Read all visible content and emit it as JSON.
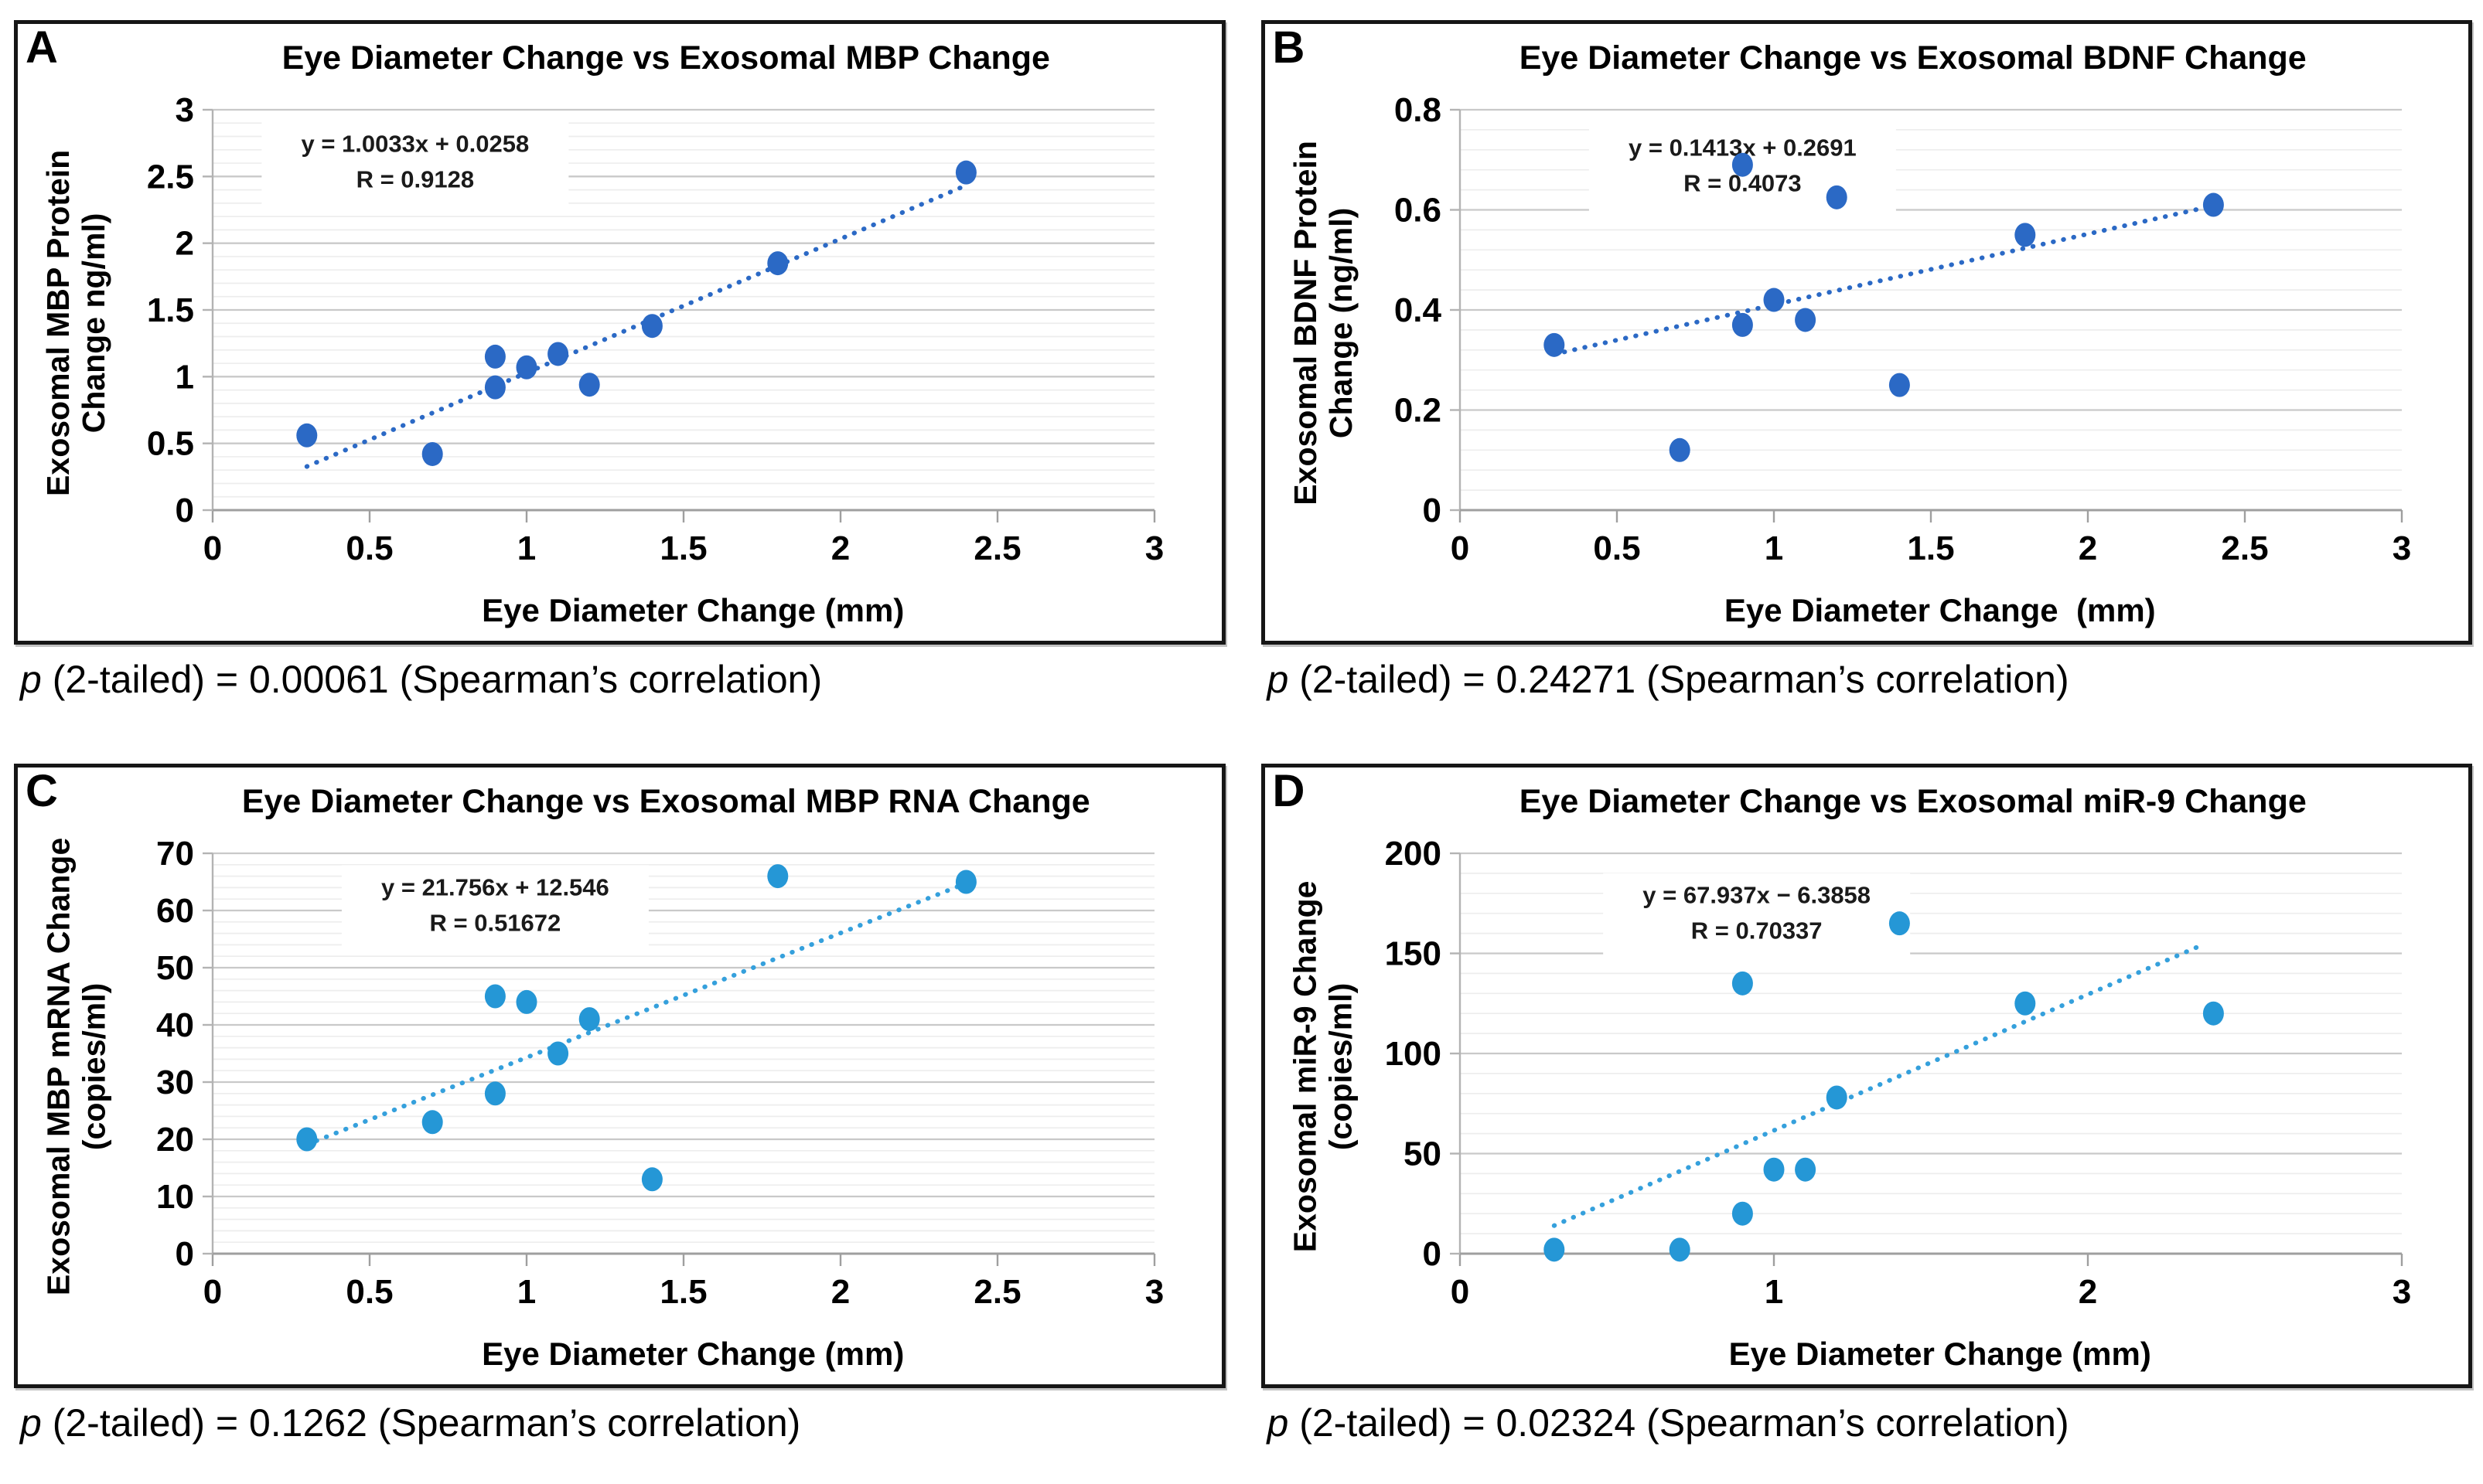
{
  "figure_caption_style": "four-panel scatter figure",
  "chart_data": [
    {
      "type": "scatter",
      "panel": "A",
      "title": "Eye Diameter Change vs Exosomal MBP Change",
      "xlabel": "Eye Diameter Change (mm)",
      "ylabel_line1": "Exosomal MBP Protein",
      "ylabel_line2": "Change ng/ml)",
      "x": [
        0.3,
        0.7,
        0.9,
        0.9,
        1.0,
        1.1,
        1.2,
        1.4,
        1.8,
        2.4
      ],
      "y": [
        0.56,
        0.42,
        1.15,
        0.92,
        1.07,
        1.17,
        0.94,
        1.38,
        1.85,
        2.53
      ],
      "xlim": [
        0,
        3
      ],
      "ylim": [
        0,
        3
      ],
      "xticks": [
        "0",
        "0.5",
        "1",
        "1.5",
        "2",
        "2.5",
        "3"
      ],
      "yticks": [
        "3",
        "2.5",
        "2",
        "1.5",
        "1",
        "0.5",
        "0"
      ],
      "y_minor_step": 0.1,
      "grid": "horizontal only",
      "legend": "none",
      "trendline": {
        "style": "dotted",
        "slope": 1.0033,
        "intercept": 0.0258,
        "x_range": [
          0.3,
          2.4
        ]
      },
      "annot": {
        "lines": [
          "y = 1.0033x + 0.0258",
          "R = 0.9128"
        ],
        "x_frac": 0.215,
        "y_frac": 0.045
      },
      "marker_color": "#2b69c5",
      "line_color": "#2b69c5",
      "p_italic": "p",
      "p_rest": " (2-tailed) = 0.00061 (Spearman’s correlation)"
    },
    {
      "type": "scatter",
      "panel": "B",
      "title": "Eye Diameter Change vs Exosomal BDNF Change",
      "xlabel": "Eye Diameter Change  (mm)",
      "ylabel_line1": "Exosomal BDNF Protein",
      "ylabel_line2": "Change (ng/ml)",
      "x": [
        0.3,
        0.7,
        0.9,
        0.9,
        1.0,
        1.1,
        1.2,
        1.4,
        1.8,
        2.4
      ],
      "y": [
        0.33,
        0.12,
        0.69,
        0.37,
        0.42,
        0.38,
        0.625,
        0.25,
        0.55,
        0.61
      ],
      "xlim": [
        0,
        3
      ],
      "ylim": [
        0,
        0.8
      ],
      "xticks": [
        "0",
        "0.5",
        "1",
        "1.5",
        "2",
        "2.5",
        "3"
      ],
      "yticks": [
        "0.8",
        "0.6",
        "0.4",
        "0.2",
        "0"
      ],
      "y_minor_step": 0.04,
      "grid": "horizontal only",
      "legend": "none",
      "trendline": {
        "style": "dotted",
        "slope": 0.1413,
        "intercept": 0.2691,
        "x_range": [
          0.3,
          2.4
        ]
      },
      "annot": {
        "lines": [
          "y = 0.1413x + 0.2691",
          "R = 0.4073"
        ],
        "x_frac": 0.3,
        "y_frac": 0.055
      },
      "marker_color": "#2b69c5",
      "line_color": "#2b69c5",
      "p_italic": "p",
      "p_rest": " (2-tailed) = 0.24271 (Spearman’s correlation)"
    },
    {
      "type": "scatter",
      "panel": "C",
      "title": "Eye Diameter Change vs Exosomal MBP RNA Change",
      "xlabel": "Eye Diameter Change (mm)",
      "ylabel_line1": "Exosomal MBP mRNA Change",
      "ylabel_line2": "(copies/ml)",
      "x": [
        0.3,
        0.7,
        0.9,
        0.9,
        1.0,
        1.1,
        1.2,
        1.4,
        1.8,
        2.4
      ],
      "y": [
        20,
        23,
        45,
        28,
        44,
        35,
        41,
        13,
        66,
        65
      ],
      "xlim": [
        0,
        3
      ],
      "ylim": [
        0,
        70
      ],
      "xticks": [
        "0",
        "0.5",
        "1",
        "1.5",
        "2",
        "2.5",
        "3"
      ],
      "yticks": [
        "70",
        "60",
        "50",
        "40",
        "30",
        "20",
        "10",
        "0"
      ],
      "y_minor_step": 2,
      "grid": "horizontal only",
      "legend": "none",
      "trendline": {
        "style": "dotted",
        "slope": 21.756,
        "intercept": 12.546,
        "x_range": [
          0.3,
          2.4
        ]
      },
      "annot": {
        "lines": [
          "y = 21.756x + 12.546",
          "R = 0.51672"
        ],
        "x_frac": 0.3,
        "y_frac": 0.045
      },
      "marker_color": "#2597d6",
      "line_color": "#35a0dc",
      "p_italic": "p",
      "p_rest": " (2-tailed) = 0.1262 (Spearman’s correlation)"
    },
    {
      "type": "scatter",
      "panel": "D",
      "title": "Eye Diameter Change vs Exosomal miR-9 Change",
      "xlabel": "Eye Diameter Change (mm)",
      "ylabel_line1": "Exosomal miR-9 Change",
      "ylabel_line2": "(copies/ml)",
      "x": [
        0.3,
        0.7,
        0.9,
        0.9,
        1.0,
        1.1,
        1.2,
        1.4,
        1.8,
        2.4
      ],
      "y": [
        2,
        2,
        135,
        20,
        42,
        42,
        78,
        165,
        125,
        120
      ],
      "xlim": [
        0,
        3
      ],
      "ylim": [
        0,
        200
      ],
      "xticks": [
        "0",
        "1",
        "2",
        "3"
      ],
      "yticks": [
        "200",
        "150",
        "100",
        "50",
        "0"
      ],
      "y_minor_step": 10,
      "grid": "horizontal only",
      "legend": "none",
      "trendline": {
        "style": "dotted",
        "slope": 67.937,
        "intercept": -6.3858,
        "x_range": [
          0.3,
          2.37
        ]
      },
      "annot": {
        "lines": [
          "y = 67.937x − 6.3858",
          "R = 0.70337"
        ],
        "x_frac": 0.315,
        "y_frac": 0.065
      },
      "marker_color": "#2597d6",
      "line_color": "#35a0dc",
      "p_italic": "p",
      "p_rest": " (2-tailed) = 0.02324 (Spearman’s correlation)"
    }
  ]
}
